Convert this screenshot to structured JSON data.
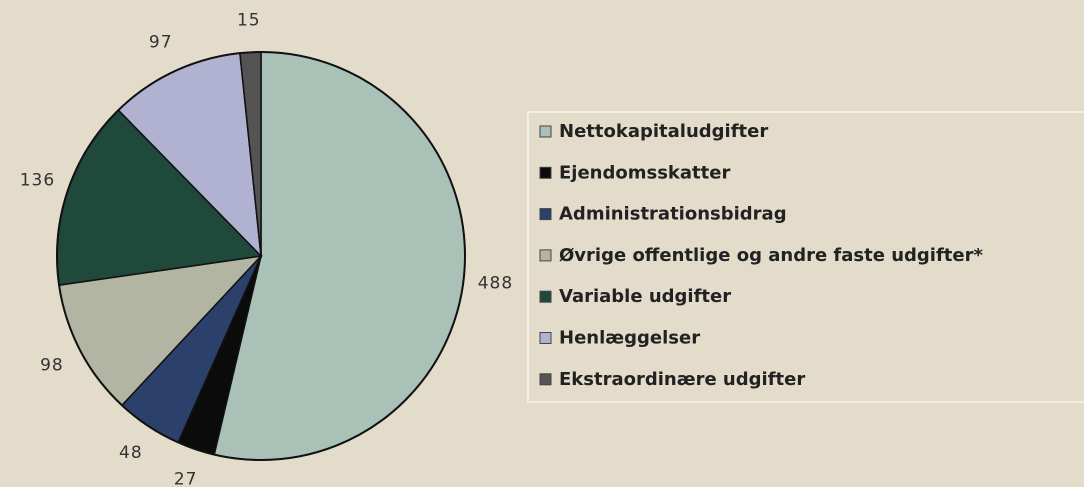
{
  "chart_data": {
    "type": "pie",
    "categories": [
      "Nettokapitaludgifter",
      "Ejendomsskatter",
      "Administrationsbidrag",
      "Øvrige offentlige og andre faste udgifter*",
      "Variable udgifter",
      "Henlæggelser",
      "Ekstraordinære udgifter"
    ],
    "values": [
      488,
      27,
      48,
      98,
      136,
      97,
      15
    ],
    "colors": [
      "#a9c1b7",
      "#0b0b0b",
      "#2b416b",
      "#b3b5a3",
      "#1f4a3b",
      "#b1b2d2",
      "#545454"
    ],
    "legend": "right"
  }
}
